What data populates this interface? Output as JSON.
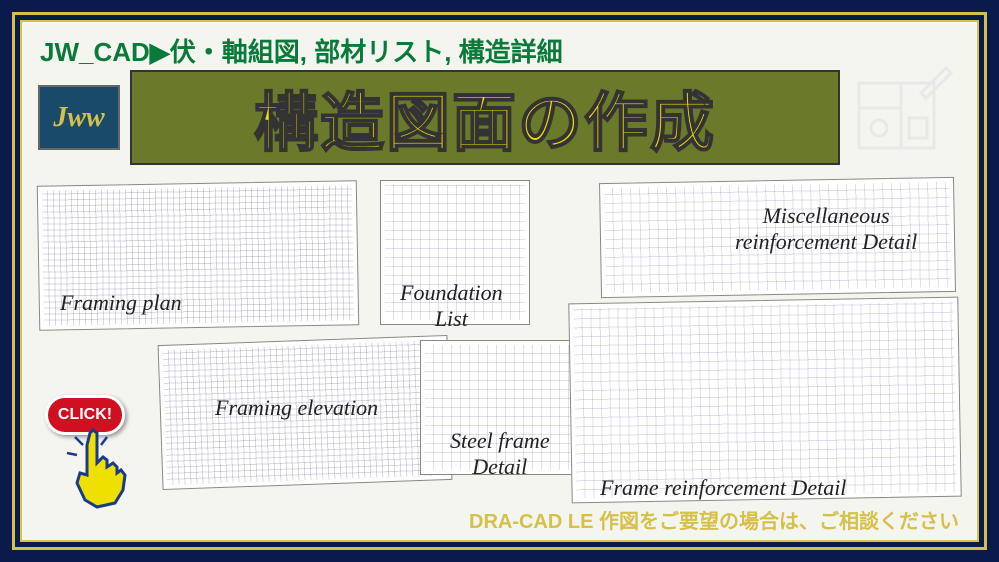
{
  "colors": {
    "page_bg": "#0a1a4a",
    "frame": "#d4c04a",
    "inner_bg": "#f5f5f0",
    "subtitle": "#0a7a3a",
    "title_bg": "#6a7a2a",
    "title_text": "#f0e000",
    "jww_bg": "#1a4a6a",
    "jww_text": "#d4c04a",
    "click_bg": "#d01020",
    "caption": "#222222"
  },
  "header": {
    "subtitle": "JW_CAD▶伏・軸組図, 部材リスト, 構造詳細",
    "jww_label": "Jww",
    "title": "構造図面の作成"
  },
  "drawings": [
    {
      "id": "d1",
      "caption": "Framing plan",
      "cap_class": "c1",
      "dense": true
    },
    {
      "id": "d2",
      "caption": "Framing elevation",
      "cap_class": "c2",
      "dense": true
    },
    {
      "id": "d3",
      "caption": "Foundation\nList",
      "cap_class": "c3",
      "dense": false
    },
    {
      "id": "d4",
      "caption": "Steel frame\nDetail",
      "cap_class": "c4",
      "dense": false
    },
    {
      "id": "d5",
      "caption": "Miscellaneous\nreinforcement Detail",
      "cap_class": "c5",
      "dense": false
    },
    {
      "id": "d6",
      "caption": "Frame reinforcement Detail",
      "cap_class": "c6",
      "dense": false
    }
  ],
  "click": {
    "label": "CLICK!"
  },
  "footer": {
    "text": "DRA-CAD LE 作図をご要望の場合は、ご相談ください"
  }
}
